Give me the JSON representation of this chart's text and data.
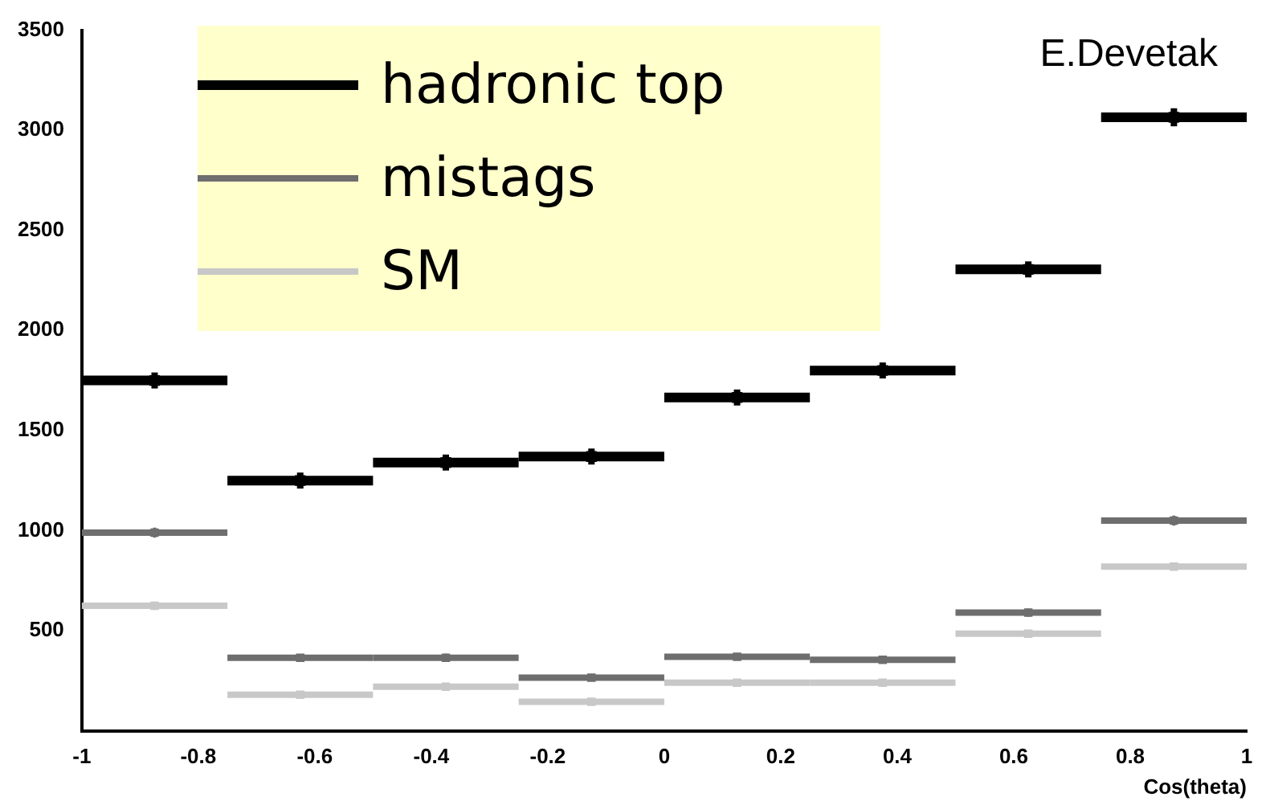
{
  "chart_data": {
    "type": "scatter",
    "xlabel": "Cos(theta)",
    "x": [
      -0.875,
      -0.625,
      -0.375,
      -0.125,
      0.125,
      0.375,
      0.625,
      0.875
    ],
    "series": [
      {
        "name": "hadronic top",
        "color": "#000000",
        "values": [
          1750,
          1250,
          1340,
          1370,
          1665,
          1800,
          2305,
          3065
        ],
        "errors": [
          40,
          40,
          40,
          40,
          40,
          40,
          40,
          45
        ],
        "xerrors": [
          0.125,
          0.125,
          0.125,
          0.125,
          0.125,
          0.125,
          0.125,
          0.125
        ]
      },
      {
        "name": "mistags",
        "color": "#6e6e6e",
        "values": [
          990,
          365,
          365,
          265,
          370,
          355,
          590,
          1050
        ],
        "errors": [
          25,
          15,
          20,
          15,
          15,
          15,
          20,
          25
        ],
        "xerrors": [
          0.125,
          0.125,
          0.125,
          0.125,
          0.125,
          0.125,
          0.125,
          0.125
        ]
      },
      {
        "name": "SM",
        "color": "#c8c8c8",
        "values": [
          625,
          180,
          220,
          145,
          240,
          240,
          485,
          820
        ],
        "errors": [
          20,
          10,
          10,
          10,
          10,
          10,
          15,
          20
        ],
        "xerrors": [
          0.125,
          0.125,
          0.125,
          0.125,
          0.125,
          0.125,
          0.125,
          0.125
        ]
      }
    ],
    "xlim": [
      -1,
      1
    ],
    "xticks": [
      -1,
      -0.8,
      -0.6,
      -0.4,
      -0.2,
      0,
      0.2,
      0.4,
      0.6,
      0.8,
      1
    ],
    "ylim": [
      0,
      3500
    ],
    "yticks": [
      500,
      1000,
      1500,
      2000,
      2500,
      3000,
      3500
    ],
    "legend": "top left",
    "grid": false,
    "marker": "square",
    "annotations": [
      "E.Devetak"
    ]
  }
}
